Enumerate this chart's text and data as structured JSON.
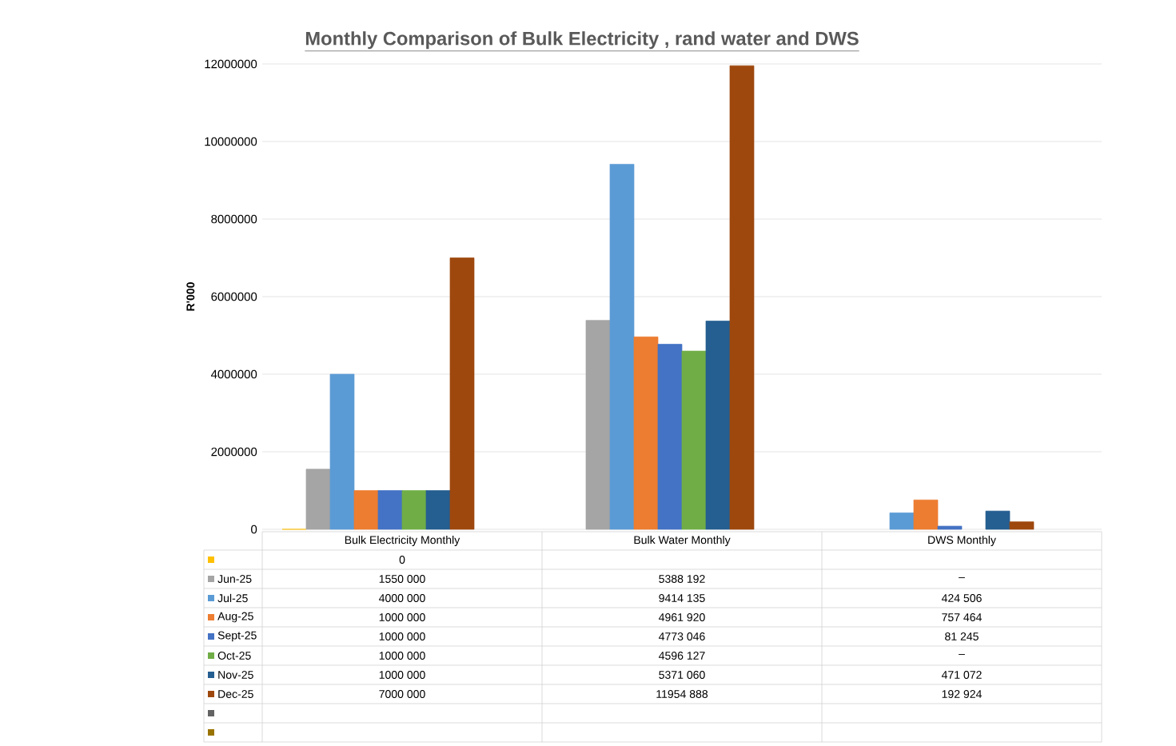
{
  "chart_data": {
    "type": "bar",
    "title": "Monthly Comparison of Bulk Electricity , rand water and DWS",
    "ylabel": "R'000",
    "categories": [
      "Bulk Electricity Monthly",
      "Bulk Water Monthly",
      "DWS Monthly"
    ],
    "series": [
      {
        "color": "#ffc000",
        "values": [
          0,
          null,
          null
        ],
        "value_labels": [
          "0",
          null,
          null
        ]
      },
      {
        "name": "Jun-25",
        "color": "#a5a5a5",
        "values": [
          1550000,
          5388192,
          null
        ],
        "value_labels": [
          "1550 000",
          "5388 192",
          "–"
        ]
      },
      {
        "name": "Jul-25",
        "color": "#5b9bd5",
        "values": [
          4000000,
          9414135,
          424506
        ],
        "value_labels": [
          "4000 000",
          "9414 135",
          "424 506"
        ]
      },
      {
        "name": "Aug-25",
        "color": "#ed7d31",
        "values": [
          1000000,
          4961920,
          757464
        ],
        "value_labels": [
          "1000 000",
          "4961 920",
          "757 464"
        ]
      },
      {
        "name": "Sept-25",
        "color": "#4472c4",
        "values": [
          1000000,
          4773046,
          81245
        ],
        "value_labels": [
          "1000 000",
          "4773 046",
          "81 245"
        ]
      },
      {
        "name": "Oct-25",
        "color": "#70ad47",
        "values": [
          1000000,
          4596127,
          null
        ],
        "value_labels": [
          "1000 000",
          "4596 127",
          "–"
        ]
      },
      {
        "name": "Nov-25",
        "color": "#255e91",
        "values": [
          1000000,
          5371060,
          471072
        ],
        "value_labels": [
          "1000 000",
          "5371 060",
          "471 072"
        ]
      },
      {
        "name": "Dec-25",
        "color": "#9e480e",
        "values": [
          7000000,
          11954888,
          192924
        ],
        "value_labels": [
          "7000 000",
          "11954 888",
          "192 924"
        ]
      },
      {
        "color": "#636363",
        "values": [
          null,
          null,
          null
        ]
      },
      {
        "color": "#997300",
        "values": [
          null,
          null,
          null
        ]
      }
    ],
    "ylim": [
      0,
      12000000
    ],
    "yticks": [
      0,
      2000000,
      4000000,
      6000000,
      8000000,
      10000000,
      12000000
    ],
    "grid": "y",
    "tick_labels": "y",
    "legend": "bottom"
  }
}
